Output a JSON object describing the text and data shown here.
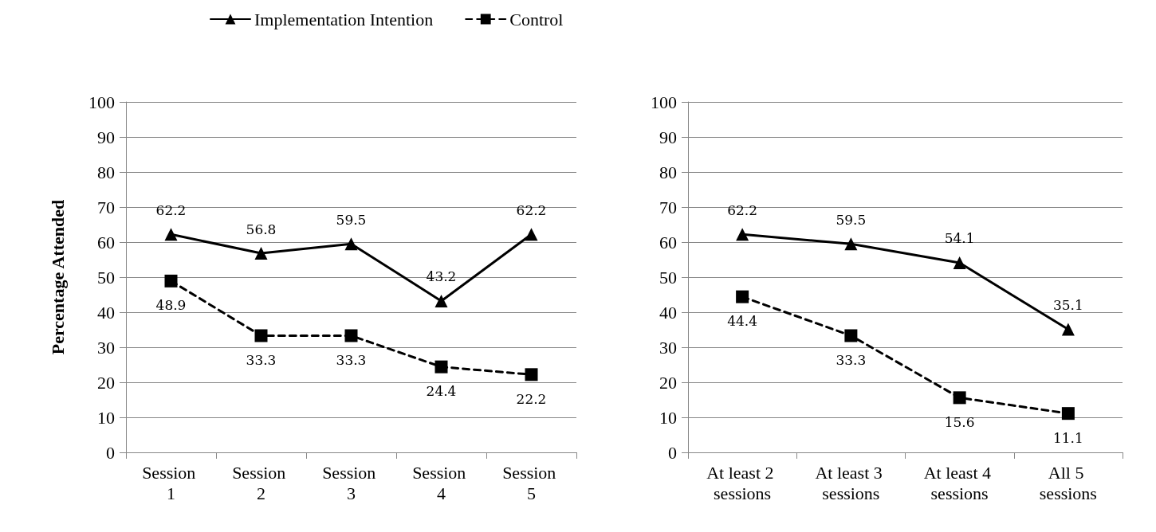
{
  "chart_data": [
    {
      "type": "line",
      "ylabel": "Percentage Attended",
      "categories": [
        "Session 1",
        "Session 2",
        "Session 3",
        "Session 4",
        "Session 5"
      ],
      "ylim": [
        0,
        100
      ],
      "yticks": [
        0,
        10,
        20,
        30,
        40,
        50,
        60,
        70,
        80,
        90,
        100
      ],
      "grid": "y",
      "legend": "top",
      "data_labels": true,
      "series": [
        {
          "name": "Implementation Intention",
          "color": "#000000",
          "marker": "triangle",
          "line_style": "solid",
          "values": [
            62.2,
            56.8,
            59.5,
            43.2,
            62.2
          ]
        },
        {
          "name": "Control",
          "color": "#000000",
          "marker": "square",
          "line_style": "dashed",
          "values": [
            48.9,
            33.3,
            33.3,
            24.4,
            22.2
          ]
        }
      ]
    },
    {
      "type": "line",
      "categories": [
        "At least 2 sessions",
        "At least 3 sessions",
        "At least 4 sessions",
        "All 5 sessions"
      ],
      "ylim": [
        0,
        100
      ],
      "yticks": [
        0,
        10,
        20,
        30,
        40,
        50,
        60,
        70,
        80,
        90,
        100
      ],
      "grid": "y",
      "data_labels": true,
      "series": [
        {
          "color": "#000000",
          "marker": "triangle",
          "line_style": "solid",
          "values": [
            62.2,
            59.5,
            54.1,
            35.1
          ]
        },
        {
          "color": "#000000",
          "marker": "square",
          "line_style": "dashed",
          "values": [
            44.4,
            33.3,
            15.6,
            11.1
          ]
        }
      ]
    }
  ]
}
